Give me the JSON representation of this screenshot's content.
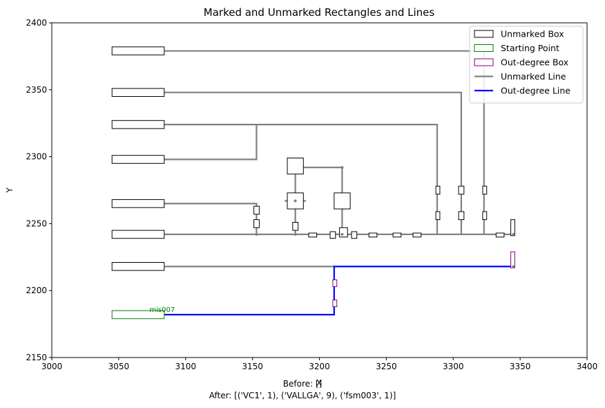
{
  "chart_data": {
    "type": "diagram",
    "title": "Marked and Unmarked Rectangles and Lines",
    "xlabel": "X",
    "ylabel": "Y",
    "xlim": [
      3000,
      3400
    ],
    "ylim": [
      2150,
      2400
    ],
    "xticks": [
      3000,
      3050,
      3100,
      3150,
      3200,
      3250,
      3300,
      3350,
      3400
    ],
    "yticks": [
      2150,
      2200,
      2250,
      2300,
      2350,
      2400
    ],
    "grid": false,
    "legend_position": "top-right",
    "legend": [
      {
        "label": "Unmarked Box",
        "kind": "box",
        "color": "#000000"
      },
      {
        "label": "Starting Point",
        "kind": "box",
        "color": "#008000"
      },
      {
        "label": "Out-degree Box",
        "kind": "box",
        "color": "#800080"
      },
      {
        "label": "Unmarked Line",
        "kind": "line",
        "color": "#808080"
      },
      {
        "label": "Out-degree Line",
        "kind": "line",
        "color": "#0000ff"
      }
    ],
    "boxes": [
      {
        "kind": "unmarked",
        "x0": 3045,
        "x1": 3084,
        "y0": 2376,
        "y1": 2382
      },
      {
        "kind": "unmarked",
        "x0": 3045,
        "x1": 3084,
        "y0": 2345,
        "y1": 2351
      },
      {
        "kind": "unmarked",
        "x0": 3045,
        "x1": 3084,
        "y0": 2321,
        "y1": 2327
      },
      {
        "kind": "unmarked",
        "x0": 3045,
        "x1": 3084,
        "y0": 2295,
        "y1": 2301
      },
      {
        "kind": "unmarked",
        "x0": 3045,
        "x1": 3084,
        "y0": 2262,
        "y1": 2268
      },
      {
        "kind": "unmarked",
        "x0": 3045,
        "x1": 3084,
        "y0": 2239,
        "y1": 2245
      },
      {
        "kind": "unmarked",
        "x0": 3045,
        "x1": 3084,
        "y0": 2215,
        "y1": 2221
      },
      {
        "kind": "start",
        "x0": 3045,
        "x1": 3084,
        "y0": 2179,
        "y1": 2185
      },
      {
        "kind": "unmarked",
        "x0": 3176,
        "x1": 3188,
        "y0": 2287,
        "y1": 2299
      },
      {
        "kind": "unmarked",
        "x0": 3176,
        "x1": 3188,
        "y0": 2261,
        "y1": 2273
      },
      {
        "kind": "unmarked",
        "x0": 3211,
        "x1": 3223,
        "y0": 2261,
        "y1": 2273
      },
      {
        "kind": "unmarked",
        "x0": 3151,
        "x1": 3155,
        "y0": 2257,
        "y1": 2263
      },
      {
        "kind": "unmarked",
        "x0": 3151,
        "x1": 3155,
        "y0": 2247,
        "y1": 2253
      },
      {
        "kind": "unmarked",
        "x0": 3180,
        "x1": 3184,
        "y0": 2245,
        "y1": 2251
      },
      {
        "kind": "unmarked",
        "x0": 3192,
        "x1": 3198,
        "y0": 2240,
        "y1": 2243
      },
      {
        "kind": "unmarked",
        "x0": 3208,
        "x1": 3212,
        "y0": 2239,
        "y1": 2244
      },
      {
        "kind": "unmarked",
        "x0": 3215,
        "x1": 3221,
        "y0": 2240,
        "y1": 2247
      },
      {
        "kind": "unmarked",
        "x0": 3224,
        "x1": 3228,
        "y0": 2239,
        "y1": 2244
      },
      {
        "kind": "unmarked",
        "x0": 3237,
        "x1": 3243,
        "y0": 2240,
        "y1": 2243
      },
      {
        "kind": "unmarked",
        "x0": 3255,
        "x1": 3261,
        "y0": 2240,
        "y1": 2243
      },
      {
        "kind": "unmarked",
        "x0": 3270,
        "x1": 3276,
        "y0": 2240,
        "y1": 2243
      },
      {
        "kind": "unmarked",
        "x0": 3287,
        "x1": 3290,
        "y0": 2272,
        "y1": 2278
      },
      {
        "kind": "unmarked",
        "x0": 3287,
        "x1": 3290,
        "y0": 2253,
        "y1": 2259
      },
      {
        "kind": "unmarked",
        "x0": 3304,
        "x1": 3308,
        "y0": 2272,
        "y1": 2278
      },
      {
        "kind": "unmarked",
        "x0": 3304,
        "x1": 3308,
        "y0": 2253,
        "y1": 2259
      },
      {
        "kind": "unmarked",
        "x0": 3322,
        "x1": 3325,
        "y0": 2272,
        "y1": 2278
      },
      {
        "kind": "unmarked",
        "x0": 3322,
        "x1": 3325,
        "y0": 2253,
        "y1": 2259
      },
      {
        "kind": "unmarked",
        "x0": 3332,
        "x1": 3338,
        "y0": 2240,
        "y1": 2243
      },
      {
        "kind": "unmarked",
        "x0": 3343,
        "x1": 3346,
        "y0": 2241,
        "y1": 2253
      },
      {
        "kind": "outdegree",
        "x0": 3343,
        "x1": 3346,
        "y0": 2217,
        "y1": 2229
      },
      {
        "kind": "outdegree",
        "x0": 3210,
        "x1": 3213,
        "y0": 2203,
        "y1": 2208
      },
      {
        "kind": "outdegree",
        "x0": 3210,
        "x1": 3213,
        "y0": 2188,
        "y1": 2193
      }
    ],
    "lines": [
      {
        "kind": "unmarked",
        "points": [
          [
            3084,
            2379
          ],
          [
            3323,
            2379
          ],
          [
            3323,
            2242
          ]
        ]
      },
      {
        "kind": "unmarked",
        "points": [
          [
            3084,
            2348
          ],
          [
            3306,
            2348
          ],
          [
            3306,
            2242
          ]
        ]
      },
      {
        "kind": "unmarked",
        "points": [
          [
            3084,
            2324
          ],
          [
            3288,
            2324
          ],
          [
            3288,
            2242
          ]
        ]
      },
      {
        "kind": "unmarked",
        "points": [
          [
            3084,
            2298
          ],
          [
            3153,
            2298
          ],
          [
            3153,
            2324
          ]
        ]
      },
      {
        "kind": "unmarked",
        "points": [
          [
            3084,
            2265
          ],
          [
            3153,
            2265
          ],
          [
            3153,
            2242
          ]
        ]
      },
      {
        "kind": "unmarked",
        "points": [
          [
            3084,
            2242
          ],
          [
            3345,
            2242
          ]
        ]
      },
      {
        "kind": "unmarked",
        "points": [
          [
            3084,
            2218
          ],
          [
            3211,
            2218
          ]
        ]
      },
      {
        "kind": "unmarked",
        "points": [
          [
            3182,
            2287
          ],
          [
            3182,
            2242
          ]
        ]
      },
      {
        "kind": "unmarked",
        "points": [
          [
            3188,
            2292
          ],
          [
            3217,
            2292
          ],
          [
            3217,
            2273
          ]
        ]
      },
      {
        "kind": "unmarked",
        "points": [
          [
            3174,
            2267
          ],
          [
            3190,
            2267
          ]
        ]
      },
      {
        "kind": "unmarked",
        "points": [
          [
            3217,
            2261
          ],
          [
            3217,
            2242
          ]
        ]
      },
      {
        "kind": "outdegree",
        "points": [
          [
            3084,
            2182
          ],
          [
            3211,
            2182
          ],
          [
            3211,
            2218
          ],
          [
            3345,
            2218
          ]
        ]
      }
    ],
    "points": [
      {
        "x": 3217,
        "y": 2292
      },
      {
        "x": 3182,
        "y": 2267
      },
      {
        "x": 3182,
        "y": 2242
      },
      {
        "x": 3153,
        "y": 2242
      },
      {
        "x": 3217,
        "y": 2242
      },
      {
        "x": 3345,
        "y": 2242
      },
      {
        "x": 3345,
        "y": 2218
      }
    ],
    "annotations": [
      {
        "text": "mis007",
        "x": 3073,
        "y": 2184,
        "color": "#008000"
      }
    ]
  },
  "caption": {
    "before": "Before: []",
    "after": "After: [('VC1', 1), ('VALLGA', 9), ('fsm003', 1)]"
  }
}
